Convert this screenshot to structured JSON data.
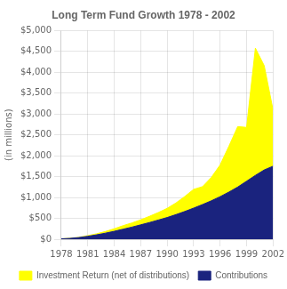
{
  "chart_data": {
    "type": "area",
    "title": "Long Term Fund Growth 1978 - 2002",
    "y_label": "(in millions)",
    "x": [
      1978,
      1979,
      1980,
      1981,
      1982,
      1983,
      1984,
      1985,
      1986,
      1987,
      1988,
      1989,
      1990,
      1991,
      1992,
      1993,
      1994,
      1995,
      1996,
      1997,
      1998,
      1999,
      2000,
      2001,
      2002
    ],
    "series": [
      {
        "name": "Contributions",
        "color": "#1a237e",
        "values": [
          10,
          20,
          40,
          70,
          105,
          145,
          190,
          240,
          290,
          345,
          400,
          460,
          520,
          590,
          665,
          745,
          830,
          920,
          1020,
          1130,
          1250,
          1390,
          1530,
          1660,
          1750
        ]
      },
      {
        "name": "Investment Return (net of distributions)",
        "color": "#ffff00",
        "values": [
          0,
          2,
          5,
          15,
          25,
          40,
          60,
          85,
          100,
          120,
          150,
          180,
          220,
          280,
          360,
          450,
          430,
          560,
          760,
          1100,
          1450,
          1290,
          3050,
          2500,
          1350
        ]
      }
    ],
    "stacked": true,
    "xlim": [
      1978,
      2002
    ],
    "xticks": [
      1978,
      1981,
      1984,
      1987,
      1990,
      1993,
      1996,
      1999,
      2002
    ],
    "ylim": [
      0,
      5000
    ],
    "yticks": [
      {
        "value": 0,
        "label": "$0"
      },
      {
        "value": 500,
        "label": "$500"
      },
      {
        "value": 1000,
        "label": "$1,000"
      },
      {
        "value": 1500,
        "label": "$1,500"
      },
      {
        "value": 2000,
        "label": "$2,000"
      },
      {
        "value": 2500,
        "label": "$2,500"
      },
      {
        "value": 3000,
        "label": "$3,000"
      },
      {
        "value": 3500,
        "label": "$3,500"
      },
      {
        "value": 4000,
        "label": "$4,000"
      },
      {
        "value": 4500,
        "label": "$4,500"
      },
      {
        "value": 5000,
        "label": "$5,000"
      }
    ],
    "grid": true,
    "legend": "bottom"
  }
}
